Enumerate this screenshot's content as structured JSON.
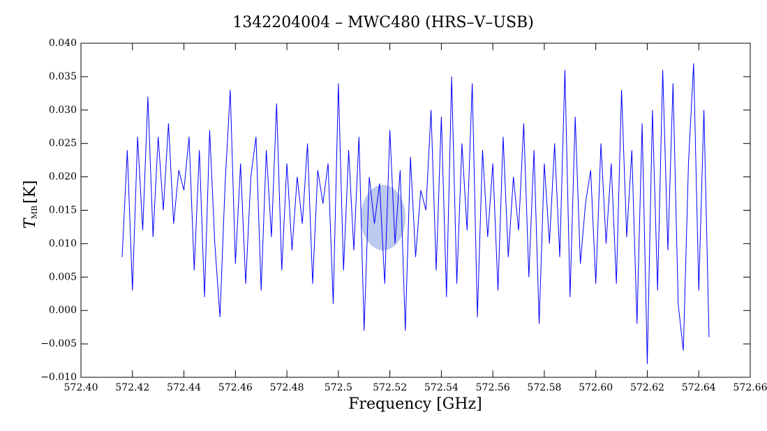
{
  "chart_data": {
    "type": "line",
    "title": "1342204004 – MWC480 (HRS–V–USB)",
    "xlabel": "Frequency [GHz]",
    "ylabel": {
      "symbol": "T",
      "subscript": "MB",
      "unit": "[K]"
    },
    "color": "#0000ff",
    "x": [
      572.416,
      572.418,
      572.42,
      572.422,
      572.424,
      572.426,
      572.428,
      572.43,
      572.432,
      572.434,
      572.436,
      572.438,
      572.44,
      572.442,
      572.444,
      572.446,
      572.448,
      572.45,
      572.452,
      572.454,
      572.456,
      572.458,
      572.46,
      572.462,
      572.464,
      572.466,
      572.468,
      572.47,
      572.472,
      572.474,
      572.476,
      572.478,
      572.48,
      572.482,
      572.484,
      572.486,
      572.488,
      572.49,
      572.492,
      572.494,
      572.496,
      572.498,
      572.5,
      572.502,
      572.504,
      572.506,
      572.508,
      572.51,
      572.512,
      572.514,
      572.516,
      572.518,
      572.52,
      572.522,
      572.524,
      572.526,
      572.528,
      572.53,
      572.532,
      572.534,
      572.536,
      572.538,
      572.54,
      572.542,
      572.544,
      572.546,
      572.548,
      572.55,
      572.552,
      572.554,
      572.556,
      572.558,
      572.56,
      572.562,
      572.564,
      572.566,
      572.568,
      572.57,
      572.572,
      572.574,
      572.576,
      572.578,
      572.58,
      572.582,
      572.584,
      572.586,
      572.588,
      572.59,
      572.592,
      572.594,
      572.596,
      572.598,
      572.6,
      572.602,
      572.604,
      572.606,
      572.608,
      572.61,
      572.612,
      572.614,
      572.616,
      572.618,
      572.62,
      572.622,
      572.624,
      572.626,
      572.628,
      572.63,
      572.632,
      572.634,
      572.636,
      572.638,
      572.64,
      572.642,
      572.644
    ],
    "values": [
      0.008,
      0.024,
      0.003,
      0.026,
      0.012,
      0.032,
      0.011,
      0.026,
      0.015,
      0.028,
      0.013,
      0.021,
      0.018,
      0.026,
      0.006,
      0.024,
      0.002,
      0.027,
      0.01,
      -0.001,
      0.019,
      0.033,
      0.007,
      0.022,
      0.004,
      0.02,
      0.026,
      0.003,
      0.024,
      0.011,
      0.031,
      0.006,
      0.022,
      0.009,
      0.02,
      0.013,
      0.025,
      0.004,
      0.021,
      0.016,
      0.022,
      0.001,
      0.034,
      0.006,
      0.024,
      0.009,
      0.026,
      -0.003,
      0.02,
      0.013,
      0.019,
      0.004,
      0.027,
      0.01,
      0.021,
      -0.003,
      0.023,
      0.008,
      0.018,
      0.015,
      0.03,
      0.006,
      0.029,
      0.002,
      0.035,
      0.004,
      0.025,
      0.012,
      0.034,
      -0.001,
      0.024,
      0.011,
      0.022,
      0.003,
      0.026,
      0.008,
      0.02,
      0.012,
      0.028,
      0.005,
      0.024,
      -0.002,
      0.022,
      0.01,
      0.025,
      0.008,
      0.036,
      0.002,
      0.029,
      0.007,
      0.016,
      0.021,
      0.004,
      0.025,
      0.01,
      0.022,
      0.004,
      0.033,
      0.011,
      0.024,
      -0.002,
      0.028,
      -0.008,
      0.03,
      0.003,
      0.036,
      0.009,
      0.034,
      0.001,
      -0.006,
      0.022,
      0.037,
      0.003,
      0.03,
      -0.004
    ],
    "xlim": [
      572.4,
      572.66
    ],
    "ylim": [
      -0.01,
      0.04
    ],
    "xticks": [
      {
        "value": 572.4,
        "label": "572.40"
      },
      572.42,
      572.44,
      572.46,
      572.48,
      572.5,
      572.52,
      572.54,
      572.56,
      572.58,
      {
        "value": 572.6,
        "label": "572.60"
      },
      572.62,
      572.64,
      572.66
    ],
    "yticks": [
      {
        "value": -0.01,
        "label": "−0.010"
      },
      {
        "value": -0.005,
        "label": "−0.005"
      },
      {
        "value": 0,
        "label": "0.000"
      },
      0.005,
      {
        "value": 0.01,
        "label": "0.010"
      },
      0.015,
      {
        "value": 0.02,
        "label": "0.020"
      },
      0.025,
      {
        "value": 0.03,
        "label": "0.030"
      },
      0.035,
      {
        "value": 0.04,
        "label": "0.040"
      }
    ]
  }
}
